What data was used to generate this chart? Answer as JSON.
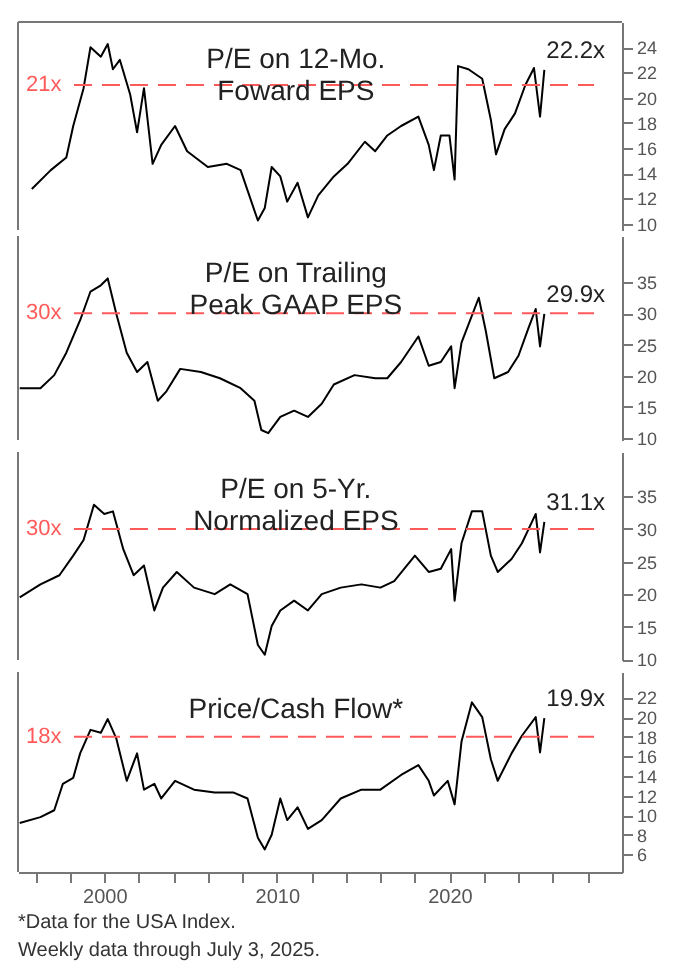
{
  "chart_data": [
    {
      "type": "line",
      "title": "P/E on 12-Mo.\nFoward EPS",
      "xlim": [
        1995,
        2030
      ],
      "ylim": [
        9.5,
        26
      ],
      "yticks": [
        10,
        12,
        14,
        16,
        18,
        20,
        22,
        24
      ],
      "tick_labels": "y",
      "x": [
        1995.8,
        1996.9,
        1997.8,
        1998.2,
        1998.8,
        1999.2,
        1999.8,
        2000.2,
        2000.5,
        2000.9,
        2001.5,
        2001.9,
        2002.3,
        2002.8,
        2003.3,
        2004.1,
        2004.8,
        2006.0,
        2007.1,
        2007.9,
        2008.9,
        2009.3,
        2009.7,
        2010.2,
        2010.6,
        2011.2,
        2011.8,
        2012.4,
        2013.3,
        2014.1,
        2015.1,
        2015.7,
        2016.4,
        2017.2,
        2018.2,
        2018.8,
        2019.1,
        2019.5,
        2020.0,
        2020.3,
        2020.5,
        2021.1,
        2021.9,
        2022.4,
        2022.7,
        2023.2,
        2023.8,
        2024.4,
        2024.9,
        2025.25,
        2025.5
      ],
      "series": [
        {
          "color": "#000000",
          "values": [
            12.75,
            14.25,
            15.25,
            17.75,
            20.75,
            24,
            23.25,
            24.25,
            22.25,
            23,
            20.25,
            17.25,
            20.75,
            14.75,
            16.25,
            17.75,
            15.75,
            14.5,
            14.75,
            14.25,
            10.25,
            11.25,
            14.5,
            13.75,
            11.75,
            13.25,
            10.5,
            12.25,
            13.75,
            14.75,
            16.5,
            15.75,
            17,
            17.75,
            18.5,
            16.25,
            14.25,
            17,
            17,
            13.5,
            22.5,
            22.25,
            21.5,
            18.25,
            15.5,
            17.5,
            18.75,
            21,
            22.35,
            18.5,
            22.2
          ]
        }
      ],
      "value_labels": [
        null,
        null,
        null,
        null,
        null,
        null,
        null,
        null,
        null,
        null,
        null,
        null,
        null,
        null,
        null,
        null,
        null,
        null,
        null,
        null,
        null,
        null,
        null,
        null,
        null,
        null,
        null,
        null,
        null,
        null,
        null,
        null,
        null,
        null,
        null,
        null,
        null,
        null,
        null,
        null,
        null,
        null,
        null,
        null,
        null,
        null,
        null,
        null,
        null,
        null,
        "22.2x"
      ],
      "ref_lines": [
        {
          "axis": "y",
          "value": 21,
          "label": "21x",
          "color": "#ff5a5a",
          "line_style": "dashed"
        }
      ]
    },
    {
      "type": "line",
      "title": "P/E on Trailing\nPeak GAAP EPS",
      "xlim": [
        1995,
        2030
      ],
      "ylim": [
        9.7,
        42.4
      ],
      "yticks": [
        10,
        15,
        20,
        25,
        30,
        35
      ],
      "tick_labels": "y",
      "x": [
        1995.1,
        1996.3,
        1997.1,
        1997.8,
        1998.6,
        1999.2,
        1999.8,
        2000.2,
        2000.7,
        2001.3,
        2001.9,
        2002.5,
        2003.1,
        2003.6,
        2004.4,
        2005.6,
        2006.7,
        2007.9,
        2008.7,
        2009.1,
        2009.5,
        2010.2,
        2011.0,
        2011.8,
        2012.6,
        2013.3,
        2014.5,
        2015.7,
        2016.4,
        2017.2,
        2018.2,
        2018.8,
        2019.5,
        2020.1,
        2020.3,
        2020.7,
        2021.7,
        2022.1,
        2022.6,
        2023.4,
        2024.0,
        2024.6,
        2025.0,
        2025.25,
        2025.5
      ],
      "series": [
        {
          "color": "#000000",
          "values": [
            18.0,
            18.0,
            20.1,
            23.7,
            28.9,
            33.5,
            34.5,
            35.6,
            29.9,
            23.7,
            20.6,
            22.2,
            16.0,
            17.5,
            21.1,
            20.6,
            19.6,
            18.0,
            16.0,
            11.3,
            10.8,
            13.4,
            14.4,
            13.4,
            15.5,
            18.6,
            20.1,
            19.6,
            19.6,
            22.2,
            26.3,
            21.6,
            22.2,
            24.7,
            18.0,
            25.3,
            32.5,
            27.3,
            19.6,
            20.6,
            23.2,
            27.8,
            30.7,
            24.7,
            29.9
          ]
        }
      ],
      "value_labels": [
        null,
        null,
        null,
        null,
        null,
        null,
        null,
        null,
        null,
        null,
        null,
        null,
        null,
        null,
        null,
        null,
        null,
        null,
        null,
        null,
        null,
        null,
        null,
        null,
        null,
        null,
        null,
        null,
        null,
        null,
        null,
        null,
        null,
        null,
        null,
        null,
        null,
        null,
        null,
        null,
        null,
        null,
        null,
        null,
        "29.9x"
      ],
      "ref_lines": [
        {
          "axis": "y",
          "value": 30,
          "label": "30x",
          "color": "#ff5a5a",
          "line_style": "dashed"
        }
      ]
    },
    {
      "type": "line",
      "title": "P/E on 5-Yr.\nNormalized EPS",
      "xlim": [
        1995,
        2030
      ],
      "ylim": [
        9.9,
        41.8
      ],
      "yticks": [
        10,
        15,
        20,
        25,
        30,
        35
      ],
      "tick_labels": "y",
      "x": [
        1995.1,
        1996.3,
        1997.4,
        1998.2,
        1998.8,
        1999.4,
        2000.0,
        2000.5,
        2001.1,
        2001.7,
        2002.3,
        2002.9,
        2003.4,
        2004.2,
        2005.2,
        2006.4,
        2007.3,
        2008.3,
        2008.9,
        2009.3,
        2009.7,
        2010.2,
        2011.0,
        2011.8,
        2012.6,
        2013.7,
        2014.9,
        2016.0,
        2016.8,
        2018.0,
        2018.8,
        2019.5,
        2020.1,
        2020.3,
        2020.7,
        2021.3,
        2021.9,
        2022.4,
        2022.8,
        2023.6,
        2024.2,
        2025.0,
        2025.25,
        2025.5
      ],
      "series": [
        {
          "color": "#000000",
          "values": [
            19.5,
            21.5,
            22.9,
            25.9,
            28.3,
            33.7,
            32.3,
            32.7,
            26.9,
            22.9,
            24.4,
            17.5,
            21.0,
            23.4,
            21.0,
            20.0,
            21.5,
            20.0,
            12.2,
            10.7,
            15.1,
            17.5,
            19.0,
            17.5,
            20.0,
            21.0,
            21.5,
            21.0,
            22.0,
            25.9,
            23.4,
            23.9,
            26.9,
            19.0,
            27.8,
            32.7,
            32.7,
            25.9,
            23.4,
            25.4,
            27.8,
            32.3,
            26.4,
            31.1
          ]
        }
      ],
      "value_labels": [
        null,
        null,
        null,
        null,
        null,
        null,
        null,
        null,
        null,
        null,
        null,
        null,
        null,
        null,
        null,
        null,
        null,
        null,
        null,
        null,
        null,
        null,
        null,
        null,
        null,
        null,
        null,
        null,
        null,
        null,
        null,
        null,
        null,
        null,
        null,
        null,
        null,
        null,
        null,
        null,
        null,
        null,
        null,
        "31.1x"
      ],
      "ref_lines": [
        {
          "axis": "y",
          "value": 30,
          "label": "30x",
          "color": "#ff5a5a",
          "line_style": "dashed"
        }
      ]
    },
    {
      "type": "line",
      "title": "Price/Cash Flow*",
      "xlim": [
        1995,
        2030
      ],
      "ylim": [
        4.2,
        24.6
      ],
      "yticks": [
        6,
        8,
        10,
        12,
        14,
        16,
        18,
        20,
        22
      ],
      "xticks": [
        {
          "value": 1996,
          "label": null
        },
        {
          "value": 1998,
          "label": null
        },
        2000,
        {
          "value": 2002,
          "label": null
        },
        {
          "value": 2004,
          "label": null
        },
        {
          "value": 2006,
          "label": null
        },
        {
          "value": 2008,
          "label": null
        },
        2010,
        {
          "value": 2012,
          "label": null
        },
        {
          "value": 2014,
          "label": null
        },
        {
          "value": 2016,
          "label": null
        },
        {
          "value": 2018,
          "label": null
        },
        2020,
        {
          "value": 2022,
          "label": null
        },
        {
          "value": 2024,
          "label": null
        },
        {
          "value": 2026,
          "label": null
        },
        {
          "value": 2028,
          "label": null
        }
      ],
      "x": [
        1995.1,
        1996.3,
        1997.1,
        1997.6,
        1998.2,
        1998.6,
        1999.2,
        1999.8,
        2000.2,
        2000.7,
        2001.3,
        2001.9,
        2002.3,
        2002.9,
        2003.3,
        2004.1,
        2005.2,
        2006.4,
        2007.5,
        2008.3,
        2008.9,
        2009.3,
        2009.7,
        2010.2,
        2010.6,
        2011.2,
        2011.8,
        2012.6,
        2013.7,
        2014.9,
        2016.0,
        2017.2,
        2018.2,
        2018.8,
        2019.1,
        2019.9,
        2020.3,
        2020.7,
        2021.3,
        2021.9,
        2022.4,
        2022.8,
        2023.6,
        2024.2,
        2025.0,
        2025.25,
        2025.5
      ],
      "series": [
        {
          "color": "#000000",
          "values": [
            9.2,
            9.8,
            10.5,
            13.2,
            13.8,
            16.3,
            18.7,
            18.4,
            19.8,
            17.8,
            13.5,
            16.3,
            12.6,
            13.2,
            11.7,
            13.5,
            12.6,
            12.3,
            12.3,
            11.7,
            7.7,
            6.5,
            8.0,
            11.7,
            9.5,
            10.8,
            8.6,
            9.5,
            11.7,
            12.6,
            12.6,
            14.1,
            15.1,
            13.5,
            12.0,
            13.5,
            11.1,
            17.5,
            21.5,
            20.0,
            15.7,
            13.5,
            16.3,
            18.1,
            20.0,
            16.4,
            19.9
          ]
        }
      ],
      "ref_lines": [
        {
          "axis": "y",
          "value": 18,
          "label": "18x",
          "color": "#ff5a5a",
          "line_style": "dashed"
        }
      ],
      "value_labels": [
        null,
        null,
        null,
        null,
        null,
        null,
        null,
        null,
        null,
        null,
        null,
        null,
        null,
        null,
        null,
        null,
        null,
        null,
        null,
        null,
        null,
        null,
        null,
        null,
        null,
        null,
        null,
        null,
        null,
        null,
        null,
        null,
        null,
        null,
        null,
        null,
        null,
        null,
        null,
        null,
        null,
        null,
        null,
        null,
        null,
        null,
        "19.9x"
      ],
      "annotations": [
        "*Data for the USA Index.",
        "Weekly data through July 3, 2025."
      ]
    }
  ]
}
